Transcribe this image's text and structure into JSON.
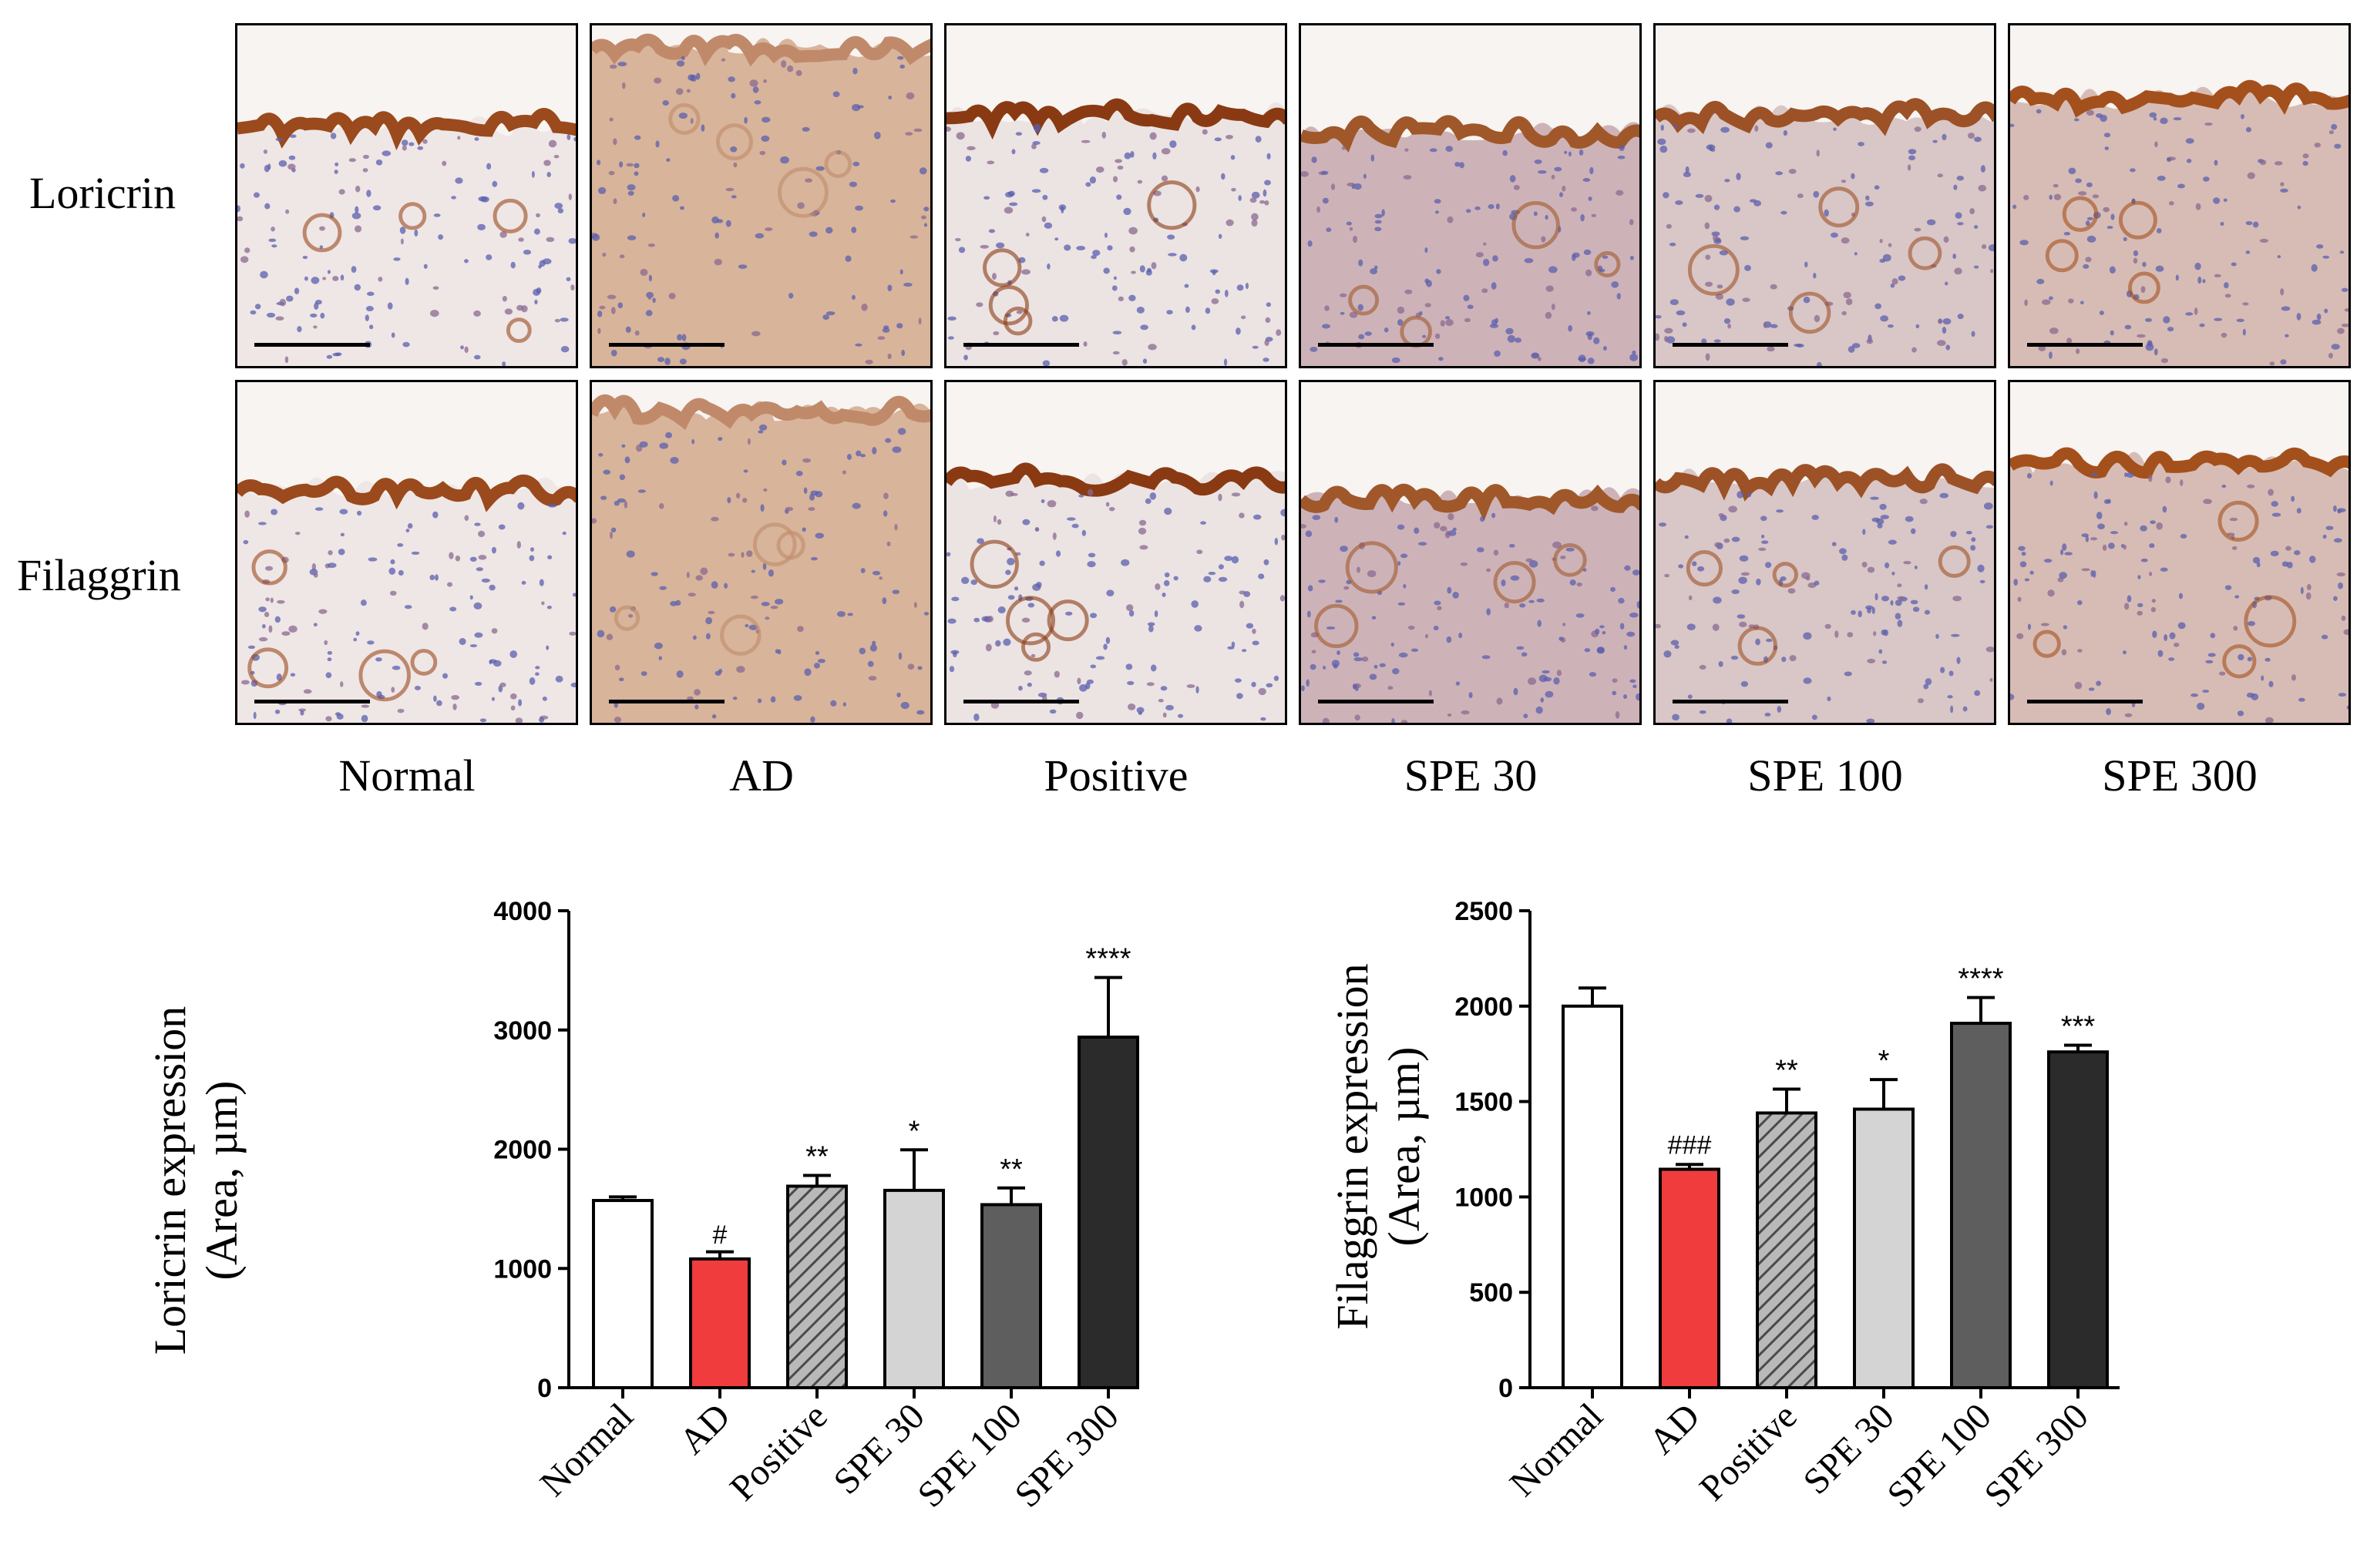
{
  "histology": {
    "row_labels": [
      "Loricrin",
      "Filaggrin"
    ],
    "column_labels": [
      "Normal",
      "AD",
      "Positive",
      "SPE 30",
      "SPE 100",
      "SPE 300"
    ]
  },
  "chart_data": [
    {
      "type": "bar",
      "categories": [
        "Normal",
        "AD",
        "Positive",
        "SPE 30",
        "SPE 100",
        "SPE 300"
      ],
      "values": [
        1570,
        1080,
        1690,
        1655,
        1535,
        2940
      ],
      "errors": [
        30,
        60,
        90,
        340,
        140,
        500
      ],
      "annotations": [
        "",
        "#",
        "**",
        "*",
        "**",
        "****"
      ],
      "ylabel": [
        "Loricrin expression",
        "(Area, µm)"
      ],
      "ylim": [
        0,
        4000
      ],
      "yticks": [
        0,
        1000,
        2000,
        3000,
        4000
      ],
      "bar_styles": [
        {
          "fill": "#ffffff",
          "pattern": "none"
        },
        {
          "fill": "#f03c3c",
          "pattern": "none"
        },
        {
          "fill": "#8a8a8a",
          "pattern": "hatch"
        },
        {
          "fill": "#d4d4d4",
          "pattern": "none"
        },
        {
          "fill": "#5e5e5e",
          "pattern": "none"
        },
        {
          "fill": "#2b2b2b",
          "pattern": "none"
        }
      ]
    },
    {
      "type": "bar",
      "categories": [
        "Normal",
        "AD",
        "Positive",
        "SPE 30",
        "SPE 100",
        "SPE 300"
      ],
      "values": [
        2000,
        1145,
        1440,
        1460,
        1910,
        1760
      ],
      "errors": [
        95,
        25,
        125,
        155,
        135,
        35
      ],
      "annotations": [
        "",
        "###",
        "**",
        "*",
        "****",
        "***"
      ],
      "ylabel": [
        "Filaggrin expression",
        "(Area, µm)"
      ],
      "ylim": [
        0,
        2500
      ],
      "yticks": [
        0,
        500,
        1000,
        1500,
        2000,
        2500
      ],
      "bar_styles": [
        {
          "fill": "#ffffff",
          "pattern": "none"
        },
        {
          "fill": "#f03c3c",
          "pattern": "none"
        },
        {
          "fill": "#8a8a8a",
          "pattern": "hatch"
        },
        {
          "fill": "#d4d4d4",
          "pattern": "none"
        },
        {
          "fill": "#5e5e5e",
          "pattern": "none"
        },
        {
          "fill": "#2b2b2b",
          "pattern": "none"
        }
      ]
    }
  ]
}
